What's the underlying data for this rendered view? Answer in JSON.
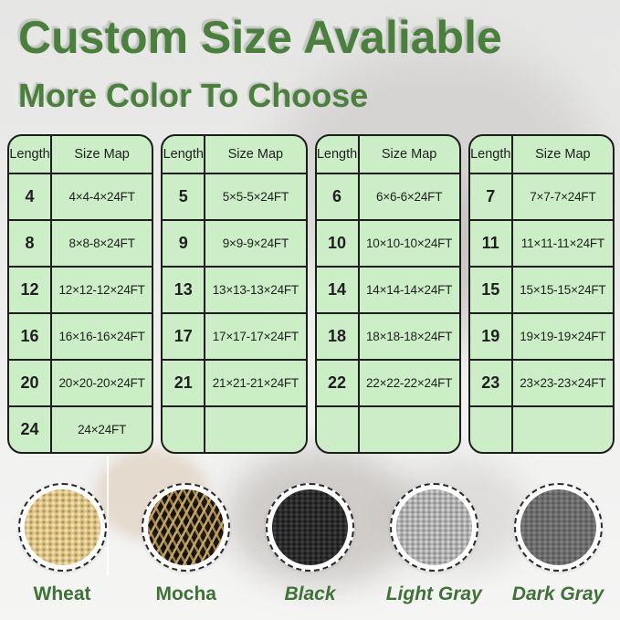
{
  "title": "Custom Size Avaliable",
  "subtitle": "More Color To Choose",
  "colors": {
    "accent_green": "#48803c",
    "label_green": "#3e7336",
    "table_bg": "#cceec7",
    "table_border": "#1d1d1d"
  },
  "tables": [
    {
      "headers": [
        "Length",
        "Size Map"
      ],
      "rows": [
        [
          "4",
          "4×4-4×24FT"
        ],
        [
          "8",
          "8×8-8×24FT"
        ],
        [
          "12",
          "12×12-12×24FT"
        ],
        [
          "16",
          "16×16-16×24FT"
        ],
        [
          "20",
          "20×20-20×24FT"
        ],
        [
          "24",
          "24×24FT"
        ]
      ]
    },
    {
      "headers": [
        "Length",
        "Size Map"
      ],
      "rows": [
        [
          "5",
          "5×5-5×24FT"
        ],
        [
          "9",
          "9×9-9×24FT"
        ],
        [
          "13",
          "13×13-13×24FT"
        ],
        [
          "17",
          "17×17-17×24FT"
        ],
        [
          "21",
          "21×21-21×24FT"
        ],
        [
          "",
          ""
        ]
      ]
    },
    {
      "headers": [
        "Length",
        "Size Map"
      ],
      "rows": [
        [
          "6",
          "6×6-6×24FT"
        ],
        [
          "10",
          "10×10-10×24FT"
        ],
        [
          "14",
          "14×14-14×24FT"
        ],
        [
          "18",
          "18×18-18×24FT"
        ],
        [
          "22",
          "22×22-22×24FT"
        ],
        [
          "",
          ""
        ]
      ]
    },
    {
      "headers": [
        "Length",
        "Size Map"
      ],
      "rows": [
        [
          "7",
          "7×7-7×24FT"
        ],
        [
          "11",
          "11×11-11×24FT"
        ],
        [
          "15",
          "15×15-15×24FT"
        ],
        [
          "19",
          "19×19-19×24FT"
        ],
        [
          "23",
          "23×23-23×24FT"
        ],
        [
          "",
          ""
        ]
      ]
    }
  ],
  "swatches": [
    {
      "label": "Wheat",
      "italic": false,
      "texture": "wheat",
      "color": "#ddc489"
    },
    {
      "label": "Mocha",
      "italic": false,
      "texture": "mocha",
      "color": "#7c6840"
    },
    {
      "label": "Black",
      "italic": true,
      "texture": "black",
      "color": "#2c2c2c"
    },
    {
      "label": "Light Gray",
      "italic": true,
      "texture": "light-gray",
      "color": "#b0b0b0"
    },
    {
      "label": "Dark Gray",
      "italic": true,
      "texture": "dark-gray",
      "color": "#6e6e6e"
    }
  ]
}
